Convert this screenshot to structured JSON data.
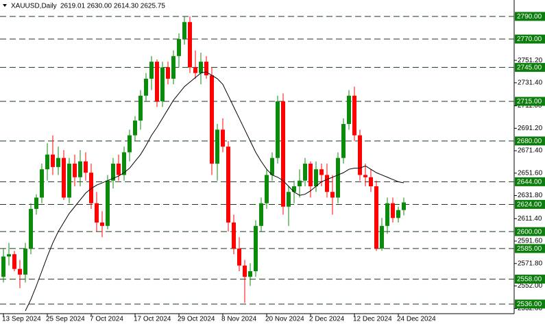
{
  "chart_data": {
    "type": "candlestick",
    "title": "XAUUSD,Daily",
    "quote": "2619.01 2630.00 2614.30 2625.75",
    "categories": [
      "13 Sep 2024",
      null,
      null,
      null,
      null,
      null,
      null,
      null,
      "25 Sep 2024",
      null,
      null,
      null,
      null,
      null,
      null,
      null,
      "7 Oct 2024",
      null,
      null,
      null,
      null,
      null,
      null,
      null,
      "17 Oct 2024",
      null,
      null,
      null,
      null,
      null,
      null,
      null,
      "29 Oct 2024",
      null,
      null,
      null,
      null,
      null,
      null,
      null,
      "8 Nov 2024",
      null,
      null,
      null,
      null,
      null,
      null,
      null,
      "20 Nov 2024",
      null,
      null,
      null,
      null,
      null,
      null,
      null,
      "2 Dec 2024",
      null,
      null,
      null,
      null,
      null,
      null,
      null,
      "12 Dec 2024",
      null,
      null,
      null,
      null,
      null,
      null,
      null,
      "24 Dec 2024",
      null
    ],
    "open": [
      2560,
      2578,
      2580,
      2567,
      2562,
      2585,
      2620,
      2630,
      2655,
      2668,
      2657,
      2665,
      2630,
      2660,
      2648,
      2662,
      2652,
      2625,
      2608,
      2605,
      2645,
      2660,
      2650,
      2670,
      2685,
      2698,
      2720,
      2735,
      2750,
      2715,
      2745,
      2735,
      2755,
      2770,
      2785,
      2745,
      2740,
      2750,
      2738,
      2660,
      2690,
      2675,
      2608,
      2585,
      2570,
      2560,
      2565,
      2605,
      2625,
      2650,
      2665,
      2715,
      2622,
      2635,
      2640,
      2645,
      2660,
      2640,
      2655,
      2650,
      2635,
      2630,
      2665,
      2695,
      2720,
      2685,
      2650,
      2648,
      2640,
      2585,
      2605,
      2625,
      2612,
      2619.01
    ],
    "high": [
      2585,
      2590,
      2583,
      2575,
      2590,
      2625,
      2633,
      2660,
      2678,
      2685,
      2675,
      2672,
      2665,
      2668,
      2672,
      2670,
      2660,
      2635,
      2618,
      2650,
      2665,
      2668,
      2675,
      2690,
      2702,
      2725,
      2740,
      2755,
      2752,
      2750,
      2750,
      2760,
      2775,
      2790,
      2790,
      2760,
      2758,
      2755,
      2745,
      2695,
      2700,
      2680,
      2615,
      2595,
      2575,
      2572,
      2610,
      2630,
      2655,
      2670,
      2720,
      2722,
      2640,
      2645,
      2655,
      2665,
      2662,
      2662,
      2660,
      2660,
      2650,
      2670,
      2700,
      2725,
      2728,
      2690,
      2660,
      2655,
      2645,
      2612,
      2630,
      2630,
      2622,
      2630
    ],
    "low": [
      2555,
      2570,
      2565,
      2550,
      2555,
      2580,
      2615,
      2625,
      2645,
      2650,
      2650,
      2628,
      2625,
      2640,
      2640,
      2645,
      2620,
      2600,
      2595,
      2602,
      2638,
      2645,
      2645,
      2662,
      2680,
      2690,
      2715,
      2725,
      2710,
      2710,
      2730,
      2730,
      2745,
      2765,
      2740,
      2735,
      2730,
      2735,
      2650,
      2645,
      2670,
      2600,
      2580,
      2565,
      2537,
      2552,
      2560,
      2600,
      2620,
      2645,
      2660,
      2615,
      2605,
      2625,
      2630,
      2640,
      2630,
      2635,
      2640,
      2630,
      2615,
      2625,
      2660,
      2690,
      2680,
      2645,
      2640,
      2635,
      2583,
      2583,
      2598,
      2608,
      2608,
      2614.3
    ],
    "close": [
      2578,
      2580,
      2567,
      2562,
      2585,
      2620,
      2630,
      2655,
      2668,
      2657,
      2665,
      2630,
      2660,
      2648,
      2662,
      2652,
      2625,
      2608,
      2605,
      2645,
      2660,
      2650,
      2670,
      2685,
      2698,
      2720,
      2735,
      2750,
      2715,
      2745,
      2735,
      2755,
      2770,
      2785,
      2745,
      2740,
      2750,
      2738,
      2660,
      2690,
      2675,
      2608,
      2585,
      2570,
      2560,
      2565,
      2605,
      2625,
      2650,
      2665,
      2715,
      2622,
      2635,
      2640,
      2645,
      2660,
      2640,
      2655,
      2650,
      2635,
      2630,
      2665,
      2695,
      2720,
      2685,
      2650,
      2648,
      2640,
      2585,
      2605,
      2625,
      2612,
      2619,
      2625.75
    ],
    "up_color": "#0b8a0b",
    "down_color": "#ff0000",
    "ma": {
      "color": "#000000",
      "values": [
        null,
        null,
        null,
        null,
        2530,
        2540,
        2552,
        2565,
        2578,
        2590,
        2600,
        2608,
        2616,
        2622,
        2628,
        2634,
        2638,
        2641,
        2643,
        2645,
        2647,
        2649,
        2652,
        2656,
        2662,
        2668,
        2676,
        2685,
        2692,
        2700,
        2708,
        2716,
        2722,
        2728,
        2732,
        2736,
        2740,
        2741,
        2738,
        2735,
        2730,
        2720,
        2710,
        2700,
        2690,
        2680,
        2670,
        2662,
        2655,
        2650,
        2648,
        2645,
        2640,
        2635,
        2632,
        2633,
        2636,
        2640,
        2644,
        2646,
        2648,
        2650,
        2652,
        2655,
        2656,
        2656,
        2658,
        2655,
        2652,
        2650,
        2648,
        2646,
        2644,
        2643
      ]
    },
    "ylim": [
      2527.5,
      2804.5
    ],
    "yticks": [
      {
        "value": 2751.2,
        "label": "2751.20"
      },
      {
        "value": 2731.4,
        "label": "2731.40"
      },
      {
        "value": 2711,
        "label": "2711.00"
      },
      {
        "value": 2691.2,
        "label": "2691.20"
      },
      {
        "value": 2671.4,
        "label": "2671.40"
      },
      {
        "value": 2651.6,
        "label": "2651.60"
      },
      {
        "value": 2631.8,
        "label": "2631.80"
      },
      {
        "value": 2611.4,
        "label": "2611.40"
      },
      {
        "value": 2591.6,
        "label": "2591.60"
      },
      {
        "value": 2571.8,
        "label": "2571.80"
      },
      {
        "value": 2552,
        "label": "2552.00"
      },
      {
        "value": 2532,
        "label": "2532.00"
      }
    ],
    "levels": [
      {
        "value": 2790,
        "label": "2790.00"
      },
      {
        "value": 2770,
        "label": "2770.00"
      },
      {
        "value": 2745,
        "label": "2745.00"
      },
      {
        "value": 2715,
        "label": "2715.00"
      },
      {
        "value": 2680,
        "label": "2680.00"
      },
      {
        "value": 2644,
        "label": "2644.00"
      },
      {
        "value": 2624,
        "label": "2624.00"
      },
      {
        "value": 2600,
        "label": "2600.00"
      },
      {
        "value": 2585,
        "label": "2585.00"
      },
      {
        "value": 2558,
        "label": "2558.00"
      },
      {
        "value": 2536,
        "label": "2536.00"
      }
    ],
    "level_color": "#0b7d0b"
  }
}
